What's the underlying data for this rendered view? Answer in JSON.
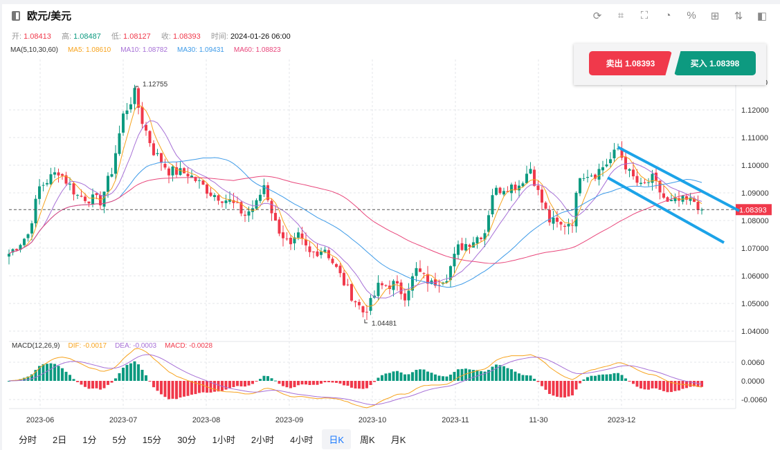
{
  "header": {
    "title": "欧元/美元",
    "tools": [
      "refresh-icon",
      "draw-icon",
      "indicator-icon",
      "pie-chart-icon",
      "percent-icon",
      "grid-icon",
      "sort-icon",
      "panel-icon"
    ],
    "tool_glyphs": [
      "⟳",
      "⌗",
      "⛶",
      "◔",
      "%",
      "⊞",
      "⇅",
      "◧"
    ]
  },
  "ohlc": {
    "open_label": "开:",
    "open": "1.08413",
    "high_label": "高:",
    "high": "1.08487",
    "low_label": "低:",
    "low": "1.08127",
    "close_label": "收:",
    "close": "1.08393",
    "time_label": "时间:",
    "time": "2024-01-26 06:00"
  },
  "ma": {
    "label": "MA(5,10,30,60)",
    "ma5": "MA5: 1.08610",
    "ma10": "MA10: 1.08782",
    "ma30": "MA30: 1.09431",
    "ma60": "MA60: 1.08823"
  },
  "trade": {
    "sell": "卖出 1.08393",
    "buy": "买入 1.08398"
  },
  "macd": {
    "label": "MACD(12,26,9)",
    "dif": "DIF: -0.0017",
    "dea": "DEA: -0.0003",
    "macd": "MACD: -0.0028"
  },
  "periods": [
    "分时",
    "2日",
    "1分",
    "5分",
    "15分",
    "30分",
    "1小时",
    "2小时",
    "4小时",
    "日K",
    "周K",
    "月K"
  ],
  "active_period": "日K",
  "colors": {
    "up": "#0d9a80",
    "down": "#f0394b",
    "ma5": "#f7a21b",
    "ma10": "#a66fd6",
    "ma30": "#3c9ae8",
    "ma60": "#e8457a",
    "channel": "#1ca3e8"
  },
  "chart_data": {
    "type": "candlestick",
    "x_labels": [
      "2023-06",
      "2023-07",
      "2023-08",
      "2023-09",
      "2023-10",
      "2023-11",
      "11-30",
      "2023-12"
    ],
    "y_ticks": [
      "1.12000",
      "1.11000",
      "1.10000",
      "1.09000",
      "1.08000",
      "1.07000",
      "1.06000",
      "1.05000",
      "1.04000"
    ],
    "y_top_partial": "1.13000",
    "ylim": [
      1.035,
      1.135
    ],
    "macd_ticks": [
      "0.0060",
      "0.0000",
      "-0.0060"
    ],
    "last_price": "1.08393",
    "high_marker": "1.12755",
    "low_marker": "1.04481",
    "close_path": [
      [
        0,
        1.068
      ],
      [
        5,
        1.075
      ],
      [
        8,
        1.092
      ],
      [
        13,
        1.098
      ],
      [
        18,
        1.089
      ],
      [
        24,
        1.087
      ],
      [
        27,
        1.098
      ],
      [
        30,
        1.118
      ],
      [
        33,
        1.126
      ],
      [
        35,
        1.116
      ],
      [
        38,
        1.105
      ],
      [
        42,
        1.098
      ],
      [
        47,
        1.097
      ],
      [
        53,
        1.09
      ],
      [
        58,
        1.087
      ],
      [
        62,
        1.082
      ],
      [
        65,
        1.086
      ],
      [
        67,
        1.093
      ],
      [
        70,
        1.079
      ],
      [
        74,
        1.07
      ],
      [
        76,
        1.074
      ],
      [
        79,
        1.068
      ],
      [
        83,
        1.07
      ],
      [
        89,
        1.055
      ],
      [
        93,
        1.047
      ],
      [
        95,
        1.05
      ],
      [
        97,
        1.056
      ],
      [
        101,
        1.057
      ],
      [
        104,
        1.053
      ],
      [
        107,
        1.062
      ],
      [
        111,
        1.057
      ],
      [
        115,
        1.06
      ],
      [
        118,
        1.07
      ],
      [
        122,
        1.073
      ],
      [
        125,
        1.076
      ],
      [
        127,
        1.09
      ],
      [
        130,
        1.092
      ],
      [
        134,
        1.093
      ],
      [
        137,
        1.099
      ],
      [
        139,
        1.09
      ],
      [
        142,
        1.08
      ],
      [
        145,
        1.078
      ],
      [
        148,
        1.08
      ],
      [
        150,
        1.097
      ],
      [
        154,
        1.097
      ],
      [
        158,
        1.102
      ],
      [
        160,
        1.106
      ],
      [
        163,
        1.097
      ],
      [
        166,
        1.092
      ],
      [
        169,
        1.095
      ],
      [
        173,
        1.086
      ],
      [
        176,
        1.087
      ],
      [
        180,
        1.087
      ],
      [
        182,
        1.0839
      ]
    ]
  }
}
